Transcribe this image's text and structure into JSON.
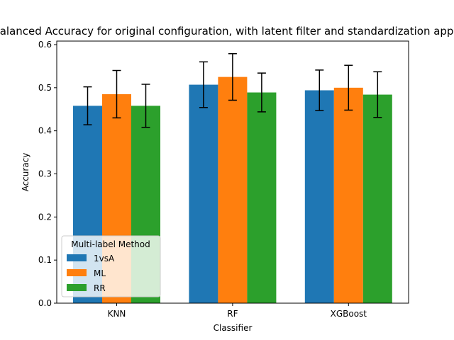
{
  "chart_data": {
    "type": "bar",
    "title": "Balanced Accuracy for original configuration, with latent filter and standardization applied",
    "xlabel": "Classifier",
    "ylabel": "Accuracy",
    "categories": [
      "KNN",
      "RF",
      "XGBoost"
    ],
    "ylim": [
      0,
      0.6
    ],
    "yticks": [
      "0.0",
      "0.1",
      "0.2",
      "0.3",
      "0.4",
      "0.5",
      "0.6"
    ],
    "grid": false,
    "legend": {
      "title": "Multi-label Method",
      "position": "lower-left"
    },
    "series": [
      {
        "name": "1vsA",
        "color": "#1f77b4",
        "values": [
          0.458,
          0.507,
          0.494
        ],
        "errors": [
          0.044,
          0.053,
          0.047
        ]
      },
      {
        "name": "ML",
        "color": "#ff7f0e",
        "values": [
          0.485,
          0.525,
          0.5
        ],
        "errors": [
          0.055,
          0.054,
          0.052
        ]
      },
      {
        "name": "RR",
        "color": "#2ca02c",
        "values": [
          0.458,
          0.489,
          0.484
        ],
        "errors": [
          0.05,
          0.045,
          0.053
        ]
      }
    ]
  }
}
